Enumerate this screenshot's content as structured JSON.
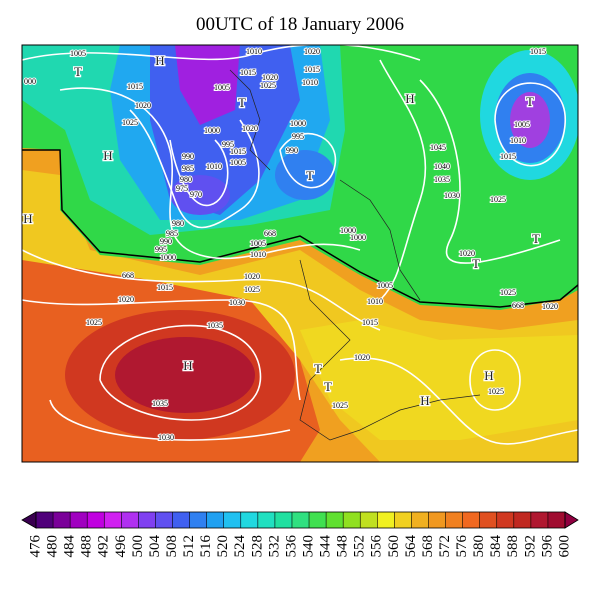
{
  "title": "00UTC of 18 January 2006",
  "map": {
    "labels": [
      "1005",
      "000",
      "T",
      "H",
      "1010",
      "1020",
      "1015",
      "1015",
      "1020",
      "1005",
      "1015",
      "1020",
      "1025",
      "1015",
      "1010",
      "T",
      "H",
      "T",
      "1025",
      "1000",
      "1020",
      "1000",
      "995",
      "1005",
      "1010",
      "H",
      "995",
      "990",
      "1015",
      "1045",
      "985",
      "1010",
      "1005",
      "990",
      "T",
      "1015",
      "980",
      "975",
      "970",
      "1040",
      "1035",
      "1030",
      "1025",
      "H",
      "980",
      "985",
      "990",
      "995",
      "1000",
      "668",
      "1000",
      "1000",
      "1005",
      "1010",
      "1020",
      "T",
      "T",
      "668",
      "1020",
      "1015",
      "1025",
      "1030",
      "1005",
      "1025",
      "668",
      "1020",
      "1020",
      "1010",
      "1025",
      "1015",
      "1035",
      "1020",
      "H",
      "T",
      "H",
      "T",
      "1025",
      "H",
      "1035",
      "1025",
      "1030"
    ]
  },
  "colorbar": {
    "ticks": [
      476,
      480,
      484,
      488,
      492,
      496,
      500,
      504,
      508,
      512,
      516,
      520,
      524,
      528,
      532,
      536,
      540,
      544,
      548,
      552,
      556,
      560,
      564,
      568,
      572,
      576,
      580,
      584,
      588,
      592,
      596,
      600
    ],
    "colors": [
      "#3a0050",
      "#50007a",
      "#7a0099",
      "#a000c0",
      "#c000e0",
      "#d020f0",
      "#b030f0",
      "#8040f0",
      "#6050f0",
      "#4060f0",
      "#3080f0",
      "#20a0f0",
      "#20c0f0",
      "#20d8e0",
      "#20e0c0",
      "#20e0a0",
      "#30e080",
      "#40e050",
      "#60e030",
      "#90e020",
      "#c0e020",
      "#f0f020",
      "#f0d020",
      "#f0b020",
      "#f09820",
      "#f08020",
      "#f06820",
      "#e05020",
      "#d03820",
      "#c02820",
      "#b01830",
      "#a00c30",
      "#900040"
    ]
  }
}
